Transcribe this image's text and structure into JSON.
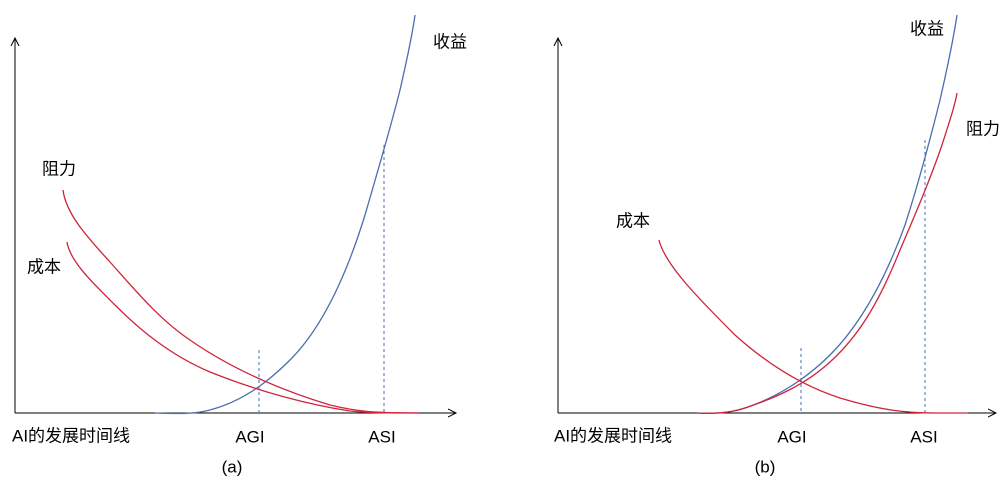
{
  "panels": [
    {
      "caption": "(a)",
      "x_axis_label": "AI的发展时间线",
      "benefit": "收益",
      "resistance": "阻力",
      "cost": "成本",
      "agi": "AGI",
      "asi": "ASI"
    },
    {
      "caption": "(b)",
      "x_axis_label": "AI的发展时间线",
      "benefit": "收益",
      "resistance": "阻力",
      "cost": "成本",
      "agi": "AGI",
      "asi": "ASI"
    }
  ]
}
